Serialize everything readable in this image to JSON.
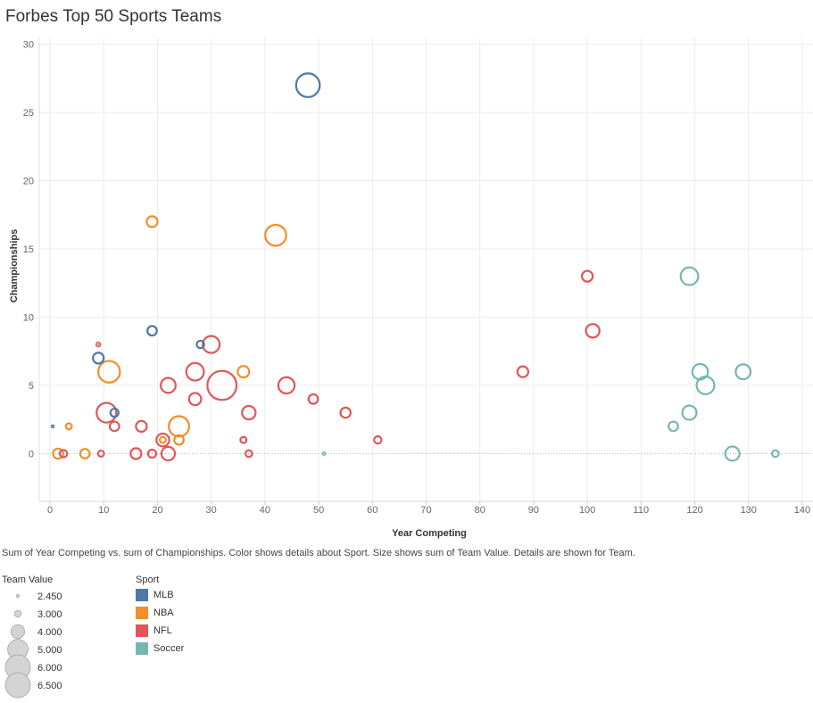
{
  "chart_data": {
    "type": "scatter",
    "title": "Forbes Top 50 Sports Teams",
    "xlabel": "Year Competing",
    "ylabel": "Championships",
    "xlim": [
      -2,
      142
    ],
    "ylim": [
      -3.5,
      30.5
    ],
    "xticks": [
      0,
      10,
      20,
      30,
      40,
      50,
      60,
      70,
      80,
      90,
      100,
      110,
      120,
      130,
      140
    ],
    "yticks": [
      0,
      5,
      10,
      15,
      20,
      25,
      30
    ],
    "grid": true,
    "caption": "Sum of Year Competing vs. sum of Championships.  Color shows details about Sport.  Size shows sum of Team Value.  Details are shown for Team.",
    "colors": {
      "MLB": "#4e79a7",
      "NBA": "#f28e2b",
      "NFL": "#e15759",
      "Soccer": "#76b7b2"
    },
    "series": [
      {
        "name": "MLB",
        "points": [
          {
            "x": 48,
            "y": 27,
            "size": 5.5
          },
          {
            "x": 19,
            "y": 9,
            "size": 3.4
          },
          {
            "x": 28,
            "y": 8,
            "size": 3.1
          },
          {
            "x": 9,
            "y": 7,
            "size": 3.6
          },
          {
            "x": 12,
            "y": 3,
            "size": 3.2
          },
          {
            "x": 0.5,
            "y": 2,
            "size": 2.45
          }
        ]
      },
      {
        "name": "NBA",
        "points": [
          {
            "x": 19,
            "y": 17,
            "size": 3.6
          },
          {
            "x": 42,
            "y": 16,
            "size": 5.1
          },
          {
            "x": 11,
            "y": 6,
            "size": 5.2
          },
          {
            "x": 36,
            "y": 6,
            "size": 3.7
          },
          {
            "x": 24,
            "y": 2,
            "size": 5.0
          },
          {
            "x": 3.5,
            "y": 2,
            "size": 2.9
          },
          {
            "x": 21,
            "y": 1,
            "size": 2.9
          },
          {
            "x": 24,
            "y": 1,
            "size": 3.4
          },
          {
            "x": 1.5,
            "y": 0,
            "size": 3.5
          },
          {
            "x": 6.5,
            "y": 0,
            "size": 3.4
          }
        ]
      },
      {
        "name": "NFL",
        "points": [
          {
            "x": 100,
            "y": 13,
            "size": 3.6
          },
          {
            "x": 101,
            "y": 9,
            "size": 4.0
          },
          {
            "x": 30,
            "y": 8,
            "size": 4.5
          },
          {
            "x": 88,
            "y": 6,
            "size": 3.6
          },
          {
            "x": 27,
            "y": 6,
            "size": 4.6
          },
          {
            "x": 32,
            "y": 5,
            "size": 6.3
          },
          {
            "x": 44,
            "y": 5,
            "size": 4.4
          },
          {
            "x": 22,
            "y": 5,
            "size": 4.2
          },
          {
            "x": 27,
            "y": 4,
            "size": 3.8
          },
          {
            "x": 49,
            "y": 4,
            "size": 3.4
          },
          {
            "x": 10.5,
            "y": 3,
            "size": 4.9
          },
          {
            "x": 37,
            "y": 3,
            "size": 4.0
          },
          {
            "x": 55,
            "y": 3,
            "size": 3.5
          },
          {
            "x": 12,
            "y": 2,
            "size": 3.4
          },
          {
            "x": 17,
            "y": 2,
            "size": 3.6
          },
          {
            "x": 9,
            "y": 8,
            "size": 2.7
          },
          {
            "x": 21,
            "y": 1,
            "size": 3.9
          },
          {
            "x": 36,
            "y": 1,
            "size": 2.9
          },
          {
            "x": 61,
            "y": 1,
            "size": 3.1
          },
          {
            "x": 2.5,
            "y": 0,
            "size": 3.1
          },
          {
            "x": 9.5,
            "y": 0,
            "size": 2.9
          },
          {
            "x": 16,
            "y": 0,
            "size": 3.6
          },
          {
            "x": 19,
            "y": 0,
            "size": 3.2
          },
          {
            "x": 22,
            "y": 0,
            "size": 4.0
          },
          {
            "x": 37,
            "y": 0,
            "size": 3.0
          }
        ]
      },
      {
        "name": "Soccer",
        "points": [
          {
            "x": 119,
            "y": 13,
            "size": 4.6
          },
          {
            "x": 121,
            "y": 6,
            "size": 4.3
          },
          {
            "x": 129,
            "y": 6,
            "size": 4.2
          },
          {
            "x": 122,
            "y": 5,
            "size": 4.6
          },
          {
            "x": 119,
            "y": 3,
            "size": 4.1
          },
          {
            "x": 116,
            "y": 2,
            "size": 3.4
          },
          {
            "x": 127,
            "y": 0,
            "size": 4.1
          },
          {
            "x": 135,
            "y": 0,
            "size": 3.0
          },
          {
            "x": 51,
            "y": 0,
            "size": 2.5
          }
        ]
      }
    ],
    "size_legend": {
      "title": "Team Value",
      "items": [
        {
          "label": "2.450",
          "value": 2.45
        },
        {
          "label": "3.000",
          "value": 3.0
        },
        {
          "label": "4.000",
          "value": 4.0
        },
        {
          "label": "5.000",
          "value": 5.0
        },
        {
          "label": "6.000",
          "value": 6.0
        },
        {
          "label": "6.500",
          "value": 6.5
        }
      ]
    },
    "color_legend": {
      "title": "Sport",
      "items": [
        "MLB",
        "NBA",
        "NFL",
        "Soccer"
      ]
    }
  }
}
